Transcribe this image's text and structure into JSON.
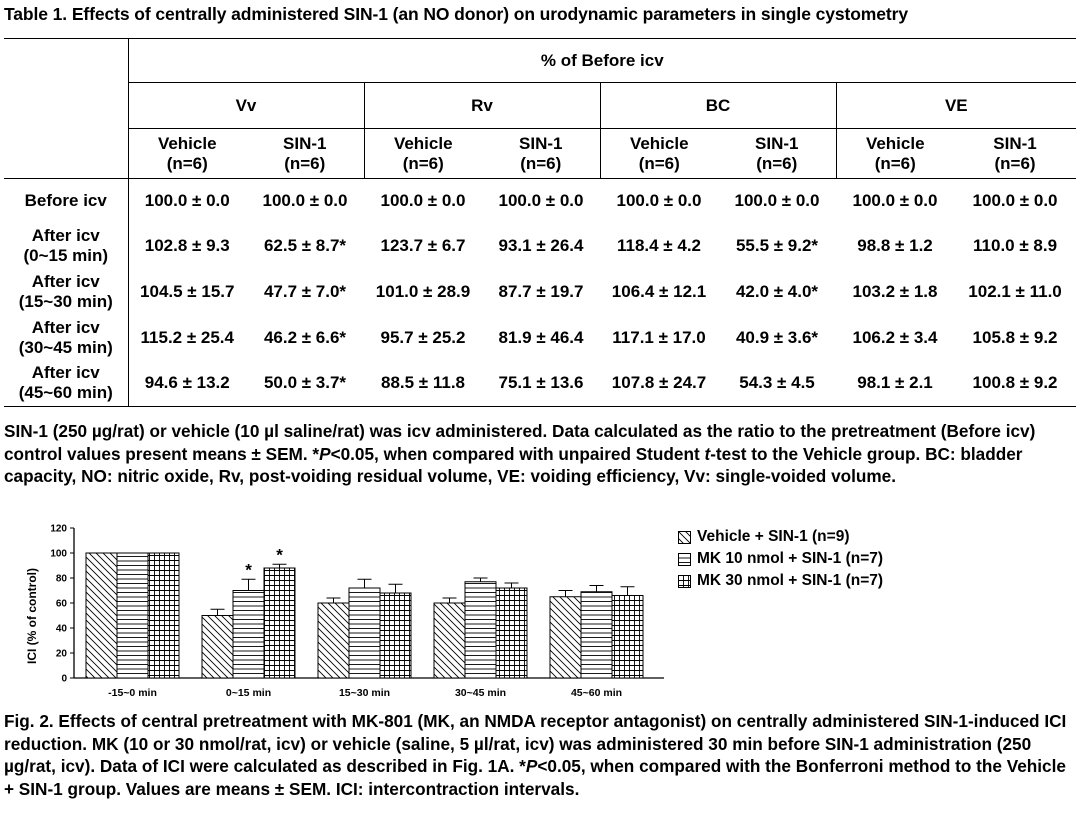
{
  "table": {
    "title": "Table 1. Effects of centrally administered SIN-1 (an NO donor) on urodynamic parameters in single cystometry",
    "super_header": "% of Before icv",
    "groups": [
      "Vv",
      "Rv",
      "BC",
      "VE"
    ],
    "sub_headers": [
      {
        "line1": "Vehicle",
        "line2": "(n=6)"
      },
      {
        "line1": "SIN-1",
        "line2": "(n=6)"
      }
    ],
    "rows": [
      {
        "label1": "Before icv",
        "label2": "",
        "cells": [
          "100.0 ± 0.0",
          "100.0 ± 0.0",
          "100.0 ± 0.0",
          "100.0 ± 0.0",
          "100.0 ± 0.0",
          "100.0 ± 0.0",
          "100.0 ± 0.0",
          "100.0 ± 0.0"
        ]
      },
      {
        "label1": "After icv",
        "label2": "(0~15 min)",
        "cells": [
          "102.8 ± 9.3",
          "62.5 ± 8.7*",
          "123.7 ± 6.7",
          "93.1 ± 26.4",
          "118.4 ± 4.2",
          "55.5 ± 9.2*",
          "98.8 ± 1.2",
          "110.0 ± 8.9"
        ]
      },
      {
        "label1": "After icv",
        "label2": "(15~30 min)",
        "cells": [
          "104.5 ± 15.7",
          "47.7 ± 7.0*",
          "101.0 ± 28.9",
          "87.7 ± 19.7",
          "106.4 ± 12.1",
          "42.0 ± 4.0*",
          "103.2 ± 1.8",
          "102.1 ± 11.0"
        ]
      },
      {
        "label1": "After icv",
        "label2": "(30~45 min)",
        "cells": [
          "115.2 ± 25.4",
          "46.2 ± 6.6*",
          "95.7 ± 25.2",
          "81.9 ± 46.4",
          "117.1 ± 17.0",
          "40.9 ± 3.6*",
          "106.2 ± 3.4",
          "105.8 ± 9.2"
        ]
      },
      {
        "label1": "After icv",
        "label2": "(45~60 min)",
        "cells": [
          "94.6 ± 13.2",
          "50.0 ± 3.7*",
          "88.5 ± 11.8",
          "75.1 ± 13.6",
          "107.8 ± 24.7",
          "54.3 ± 4.5",
          "98.1 ± 2.1",
          "100.8 ± 9.2"
        ]
      }
    ],
    "note": {
      "p1": "SIN-1 (250 µg/rat) or vehicle (10 µl saline/rat) was icv administered.  Data calculated as the ratio to the pretreatment (Before icv) control values present means ± SEM.  *",
      "p_italic": "P",
      "p2": "<0.05, when compared with unpaired Student ",
      "t_italic": "t",
      "p3": "-test to the Vehicle group.  BC: bladder capacity, NO: nitric oxide, Rv, post-voiding residual volume, VE: voiding efficiency, Vv: single-voided volume."
    }
  },
  "chart_data": {
    "type": "bar",
    "ylabel": "ICI (% of control)",
    "xlabel": "",
    "ylim": [
      0,
      120
    ],
    "yticks": [
      "0",
      "20",
      "40",
      "60",
      "80",
      "100",
      "120"
    ],
    "categories": [
      "-15~0 min",
      "0~15 min",
      "15~30 min",
      "30~45 min",
      "45~60 min"
    ],
    "series": [
      {
        "name": "Vehicle + SIN-1 (n=9)",
        "values": [
          100,
          50,
          60,
          60,
          65
        ],
        "errors": [
          0,
          5,
          4,
          4,
          5
        ],
        "pattern": "diagonal"
      },
      {
        "name": "MK 10 nmol + SIN-1 (n=7)",
        "values": [
          100,
          70,
          72,
          77,
          69
        ],
        "errors": [
          0,
          9,
          7,
          3,
          5
        ],
        "pattern": "horizontal"
      },
      {
        "name": "MK 30 nmol + SIN-1 (n=7)",
        "values": [
          100,
          88,
          68,
          72,
          66
        ],
        "errors": [
          0,
          3,
          7,
          4,
          7
        ],
        "pattern": "grid"
      }
    ],
    "annotations": [
      {
        "category": "0~15 min",
        "series": 1,
        "text": "*"
      },
      {
        "category": "0~15 min",
        "series": 2,
        "text": "*"
      }
    ],
    "legend_position": "right"
  },
  "figure": {
    "caption_p1": "Fig. 2. Effects of central pretreatment with MK-801 (MK, an NMDA receptor antagonist) on centrally administered SIN-1-induced ICI reduction.  MK (10 or 30 nmol/rat, icv) or vehicle (saline, 5 µl/rat, icv) was administered 30 min before SIN-1 administration (250 µg/rat, icv).  Data of ICI were calculated as described in Fig. 1A.  *",
    "caption_italic": "P",
    "caption_p2": "<0.05, when compared with the Bonferroni method to the Vehicle + SIN-1 group.  Values are means ± SEM.  ICI: intercontraction intervals."
  }
}
